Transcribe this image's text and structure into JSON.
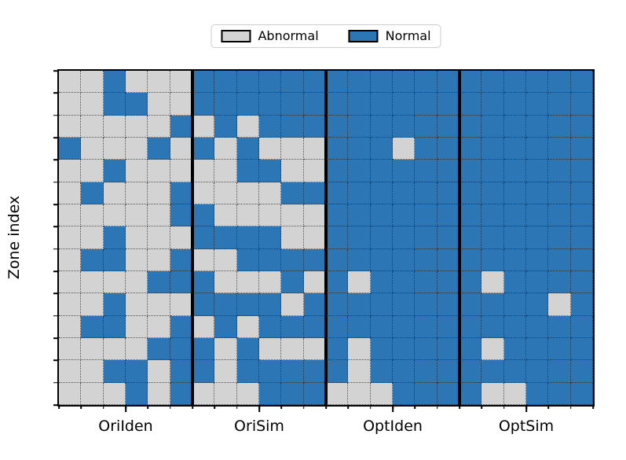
{
  "colors": {
    "normal": "#2d76b5",
    "abnormal": "#d3d3d3",
    "grid_line": "#141414",
    "separator": "#000000",
    "background": "#ffffff"
  },
  "chart_data": {
    "type": "heatmap",
    "title": "",
    "xlabel": "",
    "ylabel": "Zone index",
    "value_encoding": "1=Normal (blue), 0=Abnormal (gray)",
    "n_rows": 15,
    "n_cols_per_panel": 6,
    "legend": [
      {
        "label": "Abnormal",
        "color": "#d3d3d3"
      },
      {
        "label": "Normal",
        "color": "#2d76b5"
      }
    ],
    "legend_position": "top-center",
    "grid": "dotted",
    "panels": [
      {
        "label": "OriIden",
        "rows": [
          [
            0,
            0,
            1,
            0,
            0,
            0
          ],
          [
            0,
            0,
            1,
            1,
            0,
            0
          ],
          [
            0,
            0,
            0,
            0,
            0,
            1
          ],
          [
            1,
            0,
            0,
            0,
            1,
            0
          ],
          [
            0,
            0,
            1,
            0,
            0,
            0
          ],
          [
            0,
            1,
            0,
            0,
            0,
            1
          ],
          [
            0,
            0,
            0,
            0,
            0,
            1
          ],
          [
            0,
            0,
            1,
            0,
            0,
            0
          ],
          [
            0,
            1,
            1,
            0,
            0,
            1
          ],
          [
            0,
            0,
            0,
            0,
            1,
            1
          ],
          [
            0,
            0,
            1,
            0,
            0,
            0
          ],
          [
            0,
            1,
            1,
            0,
            0,
            1
          ],
          [
            0,
            0,
            0,
            0,
            1,
            1
          ],
          [
            0,
            0,
            1,
            1,
            0,
            1
          ],
          [
            0,
            0,
            0,
            1,
            0,
            1
          ]
        ]
      },
      {
        "label": "OriSim",
        "rows": [
          [
            1,
            1,
            1,
            1,
            1,
            1
          ],
          [
            1,
            1,
            1,
            1,
            1,
            1
          ],
          [
            0,
            1,
            0,
            1,
            1,
            1
          ],
          [
            1,
            0,
            1,
            0,
            0,
            0
          ],
          [
            0,
            0,
            1,
            1,
            0,
            0
          ],
          [
            0,
            0,
            0,
            0,
            1,
            1
          ],
          [
            1,
            0,
            0,
            0,
            0,
            0
          ],
          [
            1,
            1,
            1,
            1,
            0,
            0
          ],
          [
            0,
            0,
            1,
            1,
            1,
            1
          ],
          [
            1,
            0,
            0,
            0,
            1,
            0
          ],
          [
            1,
            1,
            1,
            1,
            0,
            1
          ],
          [
            0,
            1,
            0,
            1,
            1,
            1
          ],
          [
            1,
            0,
            1,
            0,
            0,
            0
          ],
          [
            1,
            0,
            1,
            1,
            1,
            1
          ],
          [
            0,
            0,
            0,
            1,
            1,
            1
          ]
        ]
      },
      {
        "label": "OptIden",
        "rows": [
          [
            1,
            1,
            1,
            1,
            1,
            1
          ],
          [
            1,
            1,
            1,
            1,
            1,
            1
          ],
          [
            1,
            1,
            1,
            1,
            1,
            1
          ],
          [
            1,
            1,
            1,
            0,
            1,
            1
          ],
          [
            1,
            1,
            1,
            1,
            1,
            1
          ],
          [
            1,
            1,
            1,
            1,
            1,
            1
          ],
          [
            1,
            1,
            1,
            1,
            1,
            1
          ],
          [
            1,
            1,
            1,
            1,
            1,
            1
          ],
          [
            1,
            1,
            1,
            1,
            1,
            1
          ],
          [
            1,
            0,
            1,
            1,
            1,
            1
          ],
          [
            1,
            1,
            1,
            1,
            1,
            1
          ],
          [
            1,
            1,
            1,
            1,
            1,
            1
          ],
          [
            1,
            0,
            1,
            1,
            1,
            1
          ],
          [
            1,
            0,
            1,
            1,
            1,
            1
          ],
          [
            0,
            0,
            0,
            1,
            1,
            1
          ]
        ]
      },
      {
        "label": "OptSim",
        "rows": [
          [
            1,
            1,
            1,
            1,
            1,
            1
          ],
          [
            1,
            1,
            1,
            1,
            1,
            1
          ],
          [
            1,
            1,
            1,
            1,
            1,
            1
          ],
          [
            1,
            1,
            1,
            1,
            1,
            1
          ],
          [
            1,
            1,
            1,
            1,
            1,
            1
          ],
          [
            1,
            1,
            1,
            1,
            1,
            1
          ],
          [
            1,
            1,
            1,
            1,
            1,
            1
          ],
          [
            1,
            1,
            1,
            1,
            1,
            1
          ],
          [
            1,
            1,
            1,
            1,
            1,
            1
          ],
          [
            1,
            0,
            1,
            1,
            1,
            1
          ],
          [
            1,
            1,
            1,
            1,
            0,
            1
          ],
          [
            1,
            1,
            1,
            1,
            1,
            1
          ],
          [
            1,
            0,
            1,
            1,
            1,
            1
          ],
          [
            1,
            1,
            1,
            1,
            1,
            1
          ],
          [
            1,
            0,
            0,
            1,
            1,
            1
          ]
        ]
      }
    ]
  }
}
